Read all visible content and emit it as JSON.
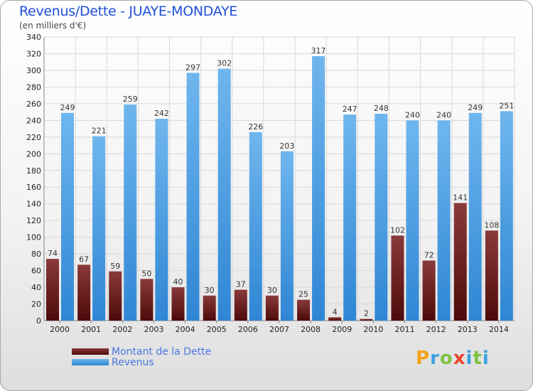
{
  "header": {
    "title": "Revenus/Dette - JUAYE-MONDAYE",
    "subtitle": "(en milliers d'€)"
  },
  "legend": {
    "debt_label": "Montant de la Dette",
    "revenue_label": "Revenus"
  },
  "logo": {
    "text": "Proxiti",
    "letters": [
      "P",
      "r",
      "o",
      "x",
      "i",
      "t",
      "i"
    ]
  },
  "colors": {
    "debt_top": "#8a3a3a",
    "debt_bottom": "#4d0a0a",
    "revenue_top": "#6fb6ee",
    "revenue_bottom": "#2f86d4",
    "title": "#1f4fd8"
  },
  "chart_data": {
    "type": "bar",
    "title": "Revenus/Dette - JUAYE-MONDAYE",
    "ylabel": "(en milliers d'€)",
    "categories": [
      "2000",
      "2001",
      "2002",
      "2003",
      "2004",
      "2005",
      "2006",
      "2007",
      "2008",
      "2009",
      "2010",
      "2011",
      "2012",
      "2013",
      "2014"
    ],
    "series": [
      {
        "name": "Montant de la Dette",
        "values": [
          74,
          67,
          59,
          50,
          40,
          30,
          37,
          30,
          25,
          4,
          2,
          102,
          72,
          141,
          108
        ]
      },
      {
        "name": "Revenus",
        "values": [
          249,
          221,
          259,
          242,
          297,
          302,
          226,
          203,
          317,
          247,
          248,
          240,
          240,
          249,
          251
        ]
      }
    ],
    "ylim": [
      0,
      340
    ],
    "yticks": [
      0,
      20,
      40,
      60,
      80,
      100,
      120,
      140,
      160,
      180,
      200,
      220,
      240,
      260,
      280,
      300,
      320,
      340
    ],
    "grid": true,
    "legend_position": "bottom-left"
  }
}
